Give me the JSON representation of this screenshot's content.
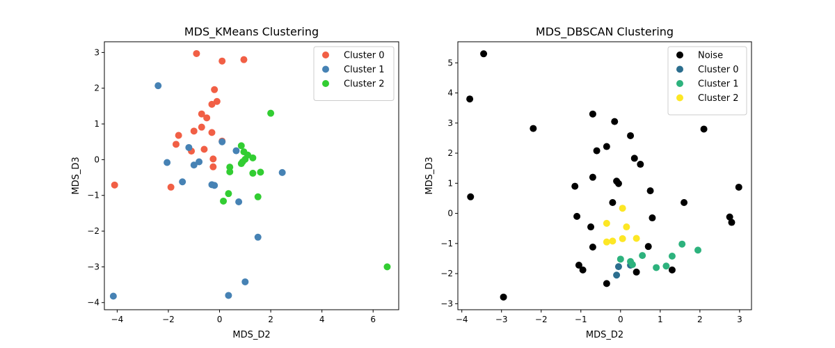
{
  "chart_data": [
    {
      "type": "scatter",
      "title": "MDS_KMeans Clustering",
      "xlabel": "MDS_D2",
      "ylabel": "MDS_D3",
      "xlim": [
        -4.5,
        7.0
      ],
      "ylim": [
        -4.2,
        3.3
      ],
      "xticks": [
        -4,
        -2,
        0,
        2,
        4,
        6
      ],
      "yticks": [
        -4,
        -3,
        -2,
        -1,
        0,
        1,
        2,
        3
      ],
      "legend_position": "top-right",
      "series": [
        {
          "name": "Cluster 0",
          "color": "#f15f45",
          "points": [
            [
              -0.9,
              2.97
            ],
            [
              0.1,
              2.76
            ],
            [
              0.95,
              2.8
            ],
            [
              -0.2,
              1.96
            ],
            [
              -0.1,
              1.63
            ],
            [
              -0.3,
              1.55
            ],
            [
              -0.7,
              1.28
            ],
            [
              -0.5,
              1.17
            ],
            [
              -0.7,
              0.91
            ],
            [
              -1.0,
              0.8
            ],
            [
              -0.3,
              0.76
            ],
            [
              -1.6,
              0.68
            ],
            [
              -1.7,
              0.43
            ],
            [
              0.1,
              0.52
            ],
            [
              -0.6,
              0.29
            ],
            [
              -1.1,
              0.24
            ],
            [
              -0.25,
              0.02
            ],
            [
              -0.25,
              -0.2
            ],
            [
              -1.9,
              -0.77
            ],
            [
              -4.1,
              -0.71
            ]
          ]
        },
        {
          "name": "Cluster 1",
          "color": "#4682b4",
          "points": [
            [
              -2.4,
              2.07
            ],
            [
              0.1,
              0.5
            ],
            [
              -1.2,
              0.34
            ],
            [
              0.65,
              0.25
            ],
            [
              -0.8,
              -0.06
            ],
            [
              -2.05,
              -0.08
            ],
            [
              -1.0,
              -0.15
            ],
            [
              -1.45,
              -0.62
            ],
            [
              -0.3,
              -0.7
            ],
            [
              -0.2,
              -0.72
            ],
            [
              2.45,
              -0.36
            ],
            [
              0.75,
              -1.18
            ],
            [
              1.5,
              -2.17
            ],
            [
              1.0,
              -3.42
            ],
            [
              0.35,
              -3.8
            ],
            [
              -4.15,
              -3.82
            ]
          ]
        },
        {
          "name": "Cluster 2",
          "color": "#32cd32",
          "points": [
            [
              2.0,
              1.3
            ],
            [
              0.85,
              0.39
            ],
            [
              0.95,
              0.22
            ],
            [
              1.1,
              0.13
            ],
            [
              1.3,
              0.05
            ],
            [
              1.0,
              0.01
            ],
            [
              0.9,
              -0.06
            ],
            [
              0.85,
              -0.11
            ],
            [
              0.4,
              -0.21
            ],
            [
              0.4,
              -0.34
            ],
            [
              1.6,
              -0.35
            ],
            [
              1.3,
              -0.38
            ],
            [
              0.35,
              -0.95
            ],
            [
              1.5,
              -1.04
            ],
            [
              0.15,
              -1.16
            ],
            [
              6.55,
              -3.0
            ]
          ]
        }
      ]
    },
    {
      "type": "scatter",
      "title": "MDS_DBSCAN Clustering",
      "xlabel": "MDS_D2",
      "ylabel": "MDS_D3",
      "xlim": [
        -4.1,
        3.3
      ],
      "ylim": [
        -3.2,
        5.7
      ],
      "xticks": [
        -4,
        -3,
        -2,
        -1,
        0,
        1,
        2,
        3
      ],
      "yticks": [
        -3,
        -2,
        -1,
        0,
        1,
        2,
        3,
        4,
        5
      ],
      "legend_position": "top-right",
      "series": [
        {
          "name": "Noise",
          "color": "#000000",
          "points": [
            [
              -3.45,
              5.3
            ],
            [
              -3.8,
              3.8
            ],
            [
              -3.78,
              0.55
            ],
            [
              -2.95,
              -2.78
            ],
            [
              -2.2,
              2.82
            ],
            [
              -0.7,
              3.3
            ],
            [
              -0.15,
              3.05
            ],
            [
              0.25,
              2.58
            ],
            [
              2.1,
              2.8
            ],
            [
              -0.6,
              2.08
            ],
            [
              -0.35,
              2.22
            ],
            [
              0.35,
              1.83
            ],
            [
              0.5,
              1.63
            ],
            [
              -0.7,
              1.2
            ],
            [
              -0.1,
              1.07
            ],
            [
              -0.05,
              0.99
            ],
            [
              -1.15,
              0.9
            ],
            [
              0.75,
              0.75
            ],
            [
              2.98,
              0.87
            ],
            [
              -0.2,
              0.36
            ],
            [
              1.6,
              0.36
            ],
            [
              -1.1,
              -0.1
            ],
            [
              0.8,
              -0.15
            ],
            [
              2.75,
              -0.12
            ],
            [
              2.8,
              -0.3
            ],
            [
              -0.75,
              -0.45
            ],
            [
              -0.7,
              -1.12
            ],
            [
              0.7,
              -1.1
            ],
            [
              -1.05,
              -1.72
            ],
            [
              -0.95,
              -1.88
            ],
            [
              0.4,
              -1.95
            ],
            [
              1.3,
              -1.88
            ],
            [
              -0.35,
              -2.33
            ]
          ]
        },
        {
          "name": "Cluster 0",
          "color": "#2c6e8e",
          "points": [
            [
              -0.05,
              -1.77
            ],
            [
              -0.1,
              -2.05
            ],
            [
              0.25,
              -1.72
            ]
          ]
        },
        {
          "name": "Cluster 1",
          "color": "#2db27d",
          "points": [
            [
              0.0,
              -1.52
            ],
            [
              0.25,
              -1.6
            ],
            [
              0.3,
              -1.7
            ],
            [
              0.55,
              -1.4
            ],
            [
              0.9,
              -1.8
            ],
            [
              1.15,
              -1.75
            ],
            [
              1.3,
              -1.42
            ],
            [
              1.55,
              -1.02
            ],
            [
              1.95,
              -1.22
            ]
          ]
        },
        {
          "name": "Cluster 2",
          "color": "#fde725",
          "points": [
            [
              0.05,
              0.17
            ],
            [
              -0.35,
              -0.33
            ],
            [
              0.15,
              -0.45
            ],
            [
              -0.35,
              -0.95
            ],
            [
              -0.2,
              -0.92
            ],
            [
              0.05,
              -0.84
            ],
            [
              0.4,
              -0.83
            ]
          ]
        }
      ]
    }
  ]
}
